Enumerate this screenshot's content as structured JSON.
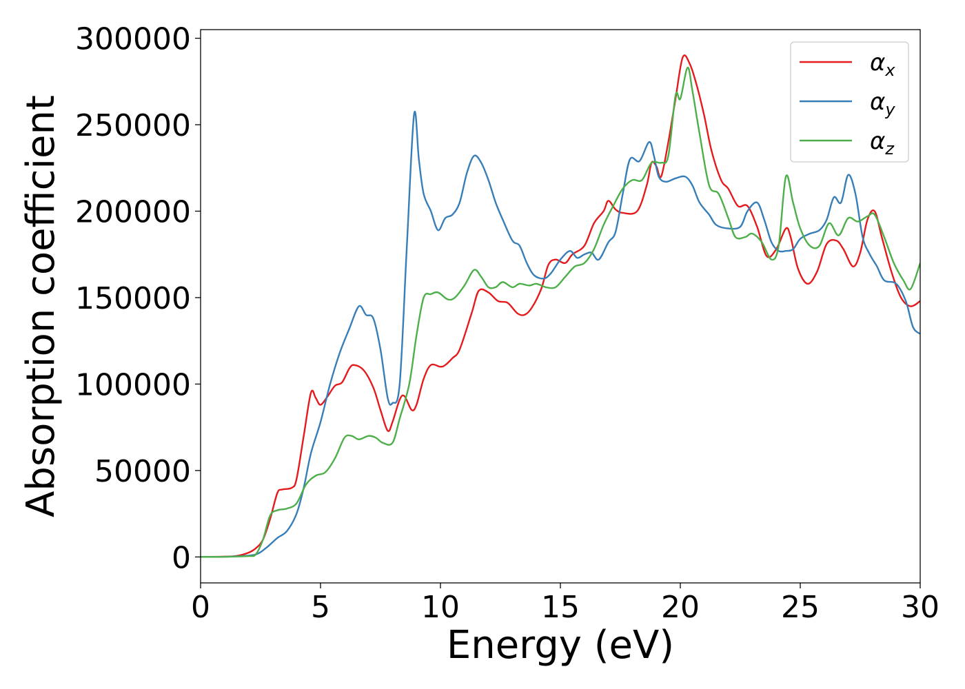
{
  "chart_data": {
    "type": "line",
    "title": "",
    "xlabel": "Energy (eV)",
    "ylabel": "Absorption coefficient",
    "xlim": [
      0,
      30
    ],
    "ylim": [
      -15000,
      305000
    ],
    "xticks": [
      0,
      5,
      10,
      15,
      20,
      25,
      30
    ],
    "yticks": [
      0,
      50000,
      100000,
      150000,
      200000,
      250000,
      300000
    ],
    "grid": false,
    "legend_position": "top-right",
    "series": [
      {
        "name": "α",
        "subscript": "x",
        "color": "#e41a1c",
        "points": [
          [
            0,
            0
          ],
          [
            1,
            200
          ],
          [
            1.5,
            600
          ],
          [
            2,
            2500
          ],
          [
            2.3,
            5000
          ],
          [
            2.6,
            10000
          ],
          [
            2.9,
            22000
          ],
          [
            3.2,
            37000
          ],
          [
            3.4,
            39000
          ],
          [
            3.8,
            40000
          ],
          [
            4,
            45000
          ],
          [
            4.3,
            70000
          ],
          [
            4.6,
            95000
          ],
          [
            4.8,
            92000
          ],
          [
            5,
            88000
          ],
          [
            5.3,
            93000
          ],
          [
            5.6,
            99000
          ],
          [
            5.9,
            101000
          ],
          [
            6.2,
            109000
          ],
          [
            6.4,
            111000
          ],
          [
            6.8,
            108000
          ],
          [
            7.2,
            98000
          ],
          [
            7.5,
            85000
          ],
          [
            7.8,
            73000
          ],
          [
            8,
            78000
          ],
          [
            8.3,
            91000
          ],
          [
            8.5,
            93000
          ],
          [
            8.8,
            85000
          ],
          [
            9,
            88000
          ],
          [
            9.3,
            103000
          ],
          [
            9.6,
            111000
          ],
          [
            10,
            110000
          ],
          [
            10.2,
            111000
          ],
          [
            10.5,
            115000
          ],
          [
            10.8,
            120000
          ],
          [
            11.3,
            141000
          ],
          [
            11.6,
            154000
          ],
          [
            12,
            153000
          ],
          [
            12.4,
            148000
          ],
          [
            12.8,
            147000
          ],
          [
            13.2,
            141000
          ],
          [
            13.5,
            140000
          ],
          [
            13.8,
            144000
          ],
          [
            14.2,
            155000
          ],
          [
            14.5,
            169000
          ],
          [
            14.8,
            172000
          ],
          [
            15.2,
            170000
          ],
          [
            15.5,
            175000
          ],
          [
            16,
            180000
          ],
          [
            16.4,
            193000
          ],
          [
            16.8,
            200000
          ],
          [
            17,
            206000
          ],
          [
            17.3,
            201000
          ],
          [
            17.6,
            199000
          ],
          [
            18.2,
            200000
          ],
          [
            18.6,
            215000
          ],
          [
            18.8,
            228000
          ],
          [
            19,
            226000
          ],
          [
            19.2,
            220000
          ],
          [
            19.5,
            240000
          ],
          [
            19.8,
            265000
          ],
          [
            20.1,
            289000
          ],
          [
            20.4,
            285000
          ],
          [
            20.7,
            272000
          ],
          [
            21,
            255000
          ],
          [
            21.3,
            235000
          ],
          [
            21.7,
            218000
          ],
          [
            22,
            213000
          ],
          [
            22.4,
            203000
          ],
          [
            22.8,
            203000
          ],
          [
            23.2,
            191000
          ],
          [
            23.6,
            174000
          ],
          [
            24,
            178000
          ],
          [
            24.4,
            190000
          ],
          [
            24.6,
            185000
          ],
          [
            24.9,
            167000
          ],
          [
            25.3,
            158000
          ],
          [
            25.7,
            165000
          ],
          [
            26.1,
            181000
          ],
          [
            26.5,
            183000
          ],
          [
            26.8,
            178000
          ],
          [
            27.2,
            168000
          ],
          [
            27.5,
            176000
          ],
          [
            27.8,
            195000
          ],
          [
            28.1,
            200000
          ],
          [
            28.4,
            185000
          ],
          [
            28.8,
            165000
          ],
          [
            29.2,
            150000
          ],
          [
            29.6,
            145000
          ],
          [
            30,
            148000
          ]
        ]
      },
      {
        "name": "α",
        "subscript": "y",
        "color": "#377eb8",
        "points": [
          [
            0,
            0
          ],
          [
            1,
            100
          ],
          [
            2,
            800
          ],
          [
            2.4,
            2000
          ],
          [
            2.8,
            6000
          ],
          [
            3.2,
            11000
          ],
          [
            3.6,
            15000
          ],
          [
            4,
            25000
          ],
          [
            4.3,
            40000
          ],
          [
            4.6,
            60000
          ],
          [
            5,
            78000
          ],
          [
            5.4,
            100000
          ],
          [
            5.8,
            118000
          ],
          [
            6.2,
            132000
          ],
          [
            6.6,
            145000
          ],
          [
            6.9,
            140000
          ],
          [
            7.2,
            138000
          ],
          [
            7.5,
            120000
          ],
          [
            7.8,
            92000
          ],
          [
            8,
            89000
          ],
          [
            8.3,
            100000
          ],
          [
            8.6,
            180000
          ],
          [
            8.9,
            256000
          ],
          [
            9.1,
            230000
          ],
          [
            9.3,
            210000
          ],
          [
            9.6,
            200000
          ],
          [
            9.9,
            189000
          ],
          [
            10.2,
            196000
          ],
          [
            10.5,
            198000
          ],
          [
            10.8,
            205000
          ],
          [
            11.1,
            222000
          ],
          [
            11.4,
            232000
          ],
          [
            11.7,
            228000
          ],
          [
            12,
            218000
          ],
          [
            12.3,
            205000
          ],
          [
            12.6,
            195000
          ],
          [
            13,
            183000
          ],
          [
            13.3,
            180000
          ],
          [
            13.6,
            170000
          ],
          [
            13.9,
            163000
          ],
          [
            14.3,
            161000
          ],
          [
            14.6,
            164000
          ],
          [
            15,
            172000
          ],
          [
            15.4,
            177000
          ],
          [
            15.7,
            173000
          ],
          [
            16,
            175000
          ],
          [
            16.3,
            176000
          ],
          [
            16.6,
            172000
          ],
          [
            17,
            182000
          ],
          [
            17.3,
            188000
          ],
          [
            17.6,
            210000
          ],
          [
            17.9,
            230000
          ],
          [
            18.3,
            229000
          ],
          [
            18.7,
            240000
          ],
          [
            18.9,
            232000
          ],
          [
            19.1,
            220000
          ],
          [
            19.4,
            217000
          ],
          [
            19.8,
            219000
          ],
          [
            20.2,
            220000
          ],
          [
            20.5,
            215000
          ],
          [
            20.8,
            205000
          ],
          [
            21.2,
            198000
          ],
          [
            21.5,
            192000
          ],
          [
            22,
            190000
          ],
          [
            22.5,
            191000
          ],
          [
            22.8,
            200000
          ],
          [
            23.2,
            205000
          ],
          [
            23.5,
            195000
          ],
          [
            23.8,
            182000
          ],
          [
            24.1,
            177000
          ],
          [
            24.4,
            177000
          ],
          [
            24.7,
            178000
          ],
          [
            25,
            184000
          ],
          [
            25.4,
            187000
          ],
          [
            25.8,
            189000
          ],
          [
            26.1,
            195000
          ],
          [
            26.4,
            208000
          ],
          [
            26.7,
            205000
          ],
          [
            27,
            221000
          ],
          [
            27.3,
            210000
          ],
          [
            27.6,
            185000
          ],
          [
            27.9,
            175000
          ],
          [
            28.2,
            168000
          ],
          [
            28.5,
            160000
          ],
          [
            29,
            158000
          ],
          [
            29.4,
            148000
          ],
          [
            29.7,
            133000
          ],
          [
            30,
            129000
          ]
        ]
      },
      {
        "name": "α",
        "subscript": "z",
        "color": "#4daf4a",
        "points": [
          [
            0,
            0
          ],
          [
            1,
            100
          ],
          [
            2,
            500
          ],
          [
            2.3,
            1500
          ],
          [
            2.6,
            10000
          ],
          [
            2.9,
            24000
          ],
          [
            3.2,
            27000
          ],
          [
            3.6,
            28000
          ],
          [
            4,
            31000
          ],
          [
            4.4,
            42000
          ],
          [
            4.8,
            47000
          ],
          [
            5.2,
            49000
          ],
          [
            5.6,
            57000
          ],
          [
            6,
            69000
          ],
          [
            6.3,
            70000
          ],
          [
            6.6,
            68000
          ],
          [
            7,
            70000
          ],
          [
            7.3,
            69000
          ],
          [
            7.6,
            66000
          ],
          [
            8,
            66000
          ],
          [
            8.3,
            80000
          ],
          [
            8.7,
            100000
          ],
          [
            9,
            128000
          ],
          [
            9.3,
            150000
          ],
          [
            9.6,
            152000
          ],
          [
            9.9,
            153000
          ],
          [
            10.3,
            149000
          ],
          [
            10.6,
            150000
          ],
          [
            11,
            157000
          ],
          [
            11.4,
            166000
          ],
          [
            11.7,
            162000
          ],
          [
            12,
            156000
          ],
          [
            12.3,
            156000
          ],
          [
            12.6,
            159000
          ],
          [
            13,
            156000
          ],
          [
            13.3,
            158000
          ],
          [
            13.7,
            157000
          ],
          [
            14,
            158000
          ],
          [
            14.4,
            156000
          ],
          [
            14.8,
            156000
          ],
          [
            15.2,
            162000
          ],
          [
            15.6,
            168000
          ],
          [
            16,
            170000
          ],
          [
            16.4,
            178000
          ],
          [
            16.8,
            192000
          ],
          [
            17.2,
            203000
          ],
          [
            17.6,
            213000
          ],
          [
            18,
            218000
          ],
          [
            18.4,
            218000
          ],
          [
            18.8,
            228000
          ],
          [
            19.2,
            228000
          ],
          [
            19.5,
            232000
          ],
          [
            19.8,
            267000
          ],
          [
            20,
            265000
          ],
          [
            20.3,
            283000
          ],
          [
            20.5,
            270000
          ],
          [
            20.8,
            245000
          ],
          [
            21.2,
            215000
          ],
          [
            21.6,
            210000
          ],
          [
            22,
            196000
          ],
          [
            22.3,
            185000
          ],
          [
            22.7,
            185000
          ],
          [
            23,
            187000
          ],
          [
            23.4,
            182000
          ],
          [
            23.8,
            172000
          ],
          [
            24.1,
            180000
          ],
          [
            24.4,
            220000
          ],
          [
            24.7,
            205000
          ],
          [
            25,
            190000
          ],
          [
            25.4,
            180000
          ],
          [
            25.8,
            180000
          ],
          [
            26.2,
            193000
          ],
          [
            26.6,
            186000
          ],
          [
            27,
            196000
          ],
          [
            27.4,
            194000
          ],
          [
            27.8,
            197000
          ],
          [
            28.1,
            198000
          ],
          [
            28.5,
            185000
          ],
          [
            28.9,
            170000
          ],
          [
            29.3,
            160000
          ],
          [
            29.6,
            155000
          ],
          [
            30,
            170000
          ]
        ]
      }
    ]
  }
}
